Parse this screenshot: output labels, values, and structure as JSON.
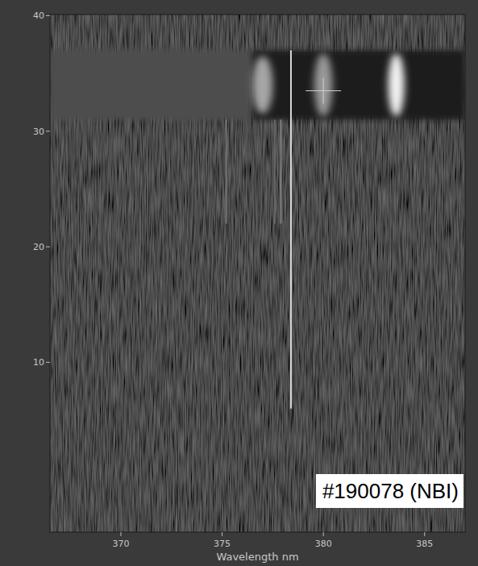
{
  "chart_data": {
    "type": "spectrogram",
    "xlabel": "Wavelength nm",
    "annotation": "#190078 (NBI)",
    "xlim": [
      366.5,
      387.0
    ],
    "ylim": [
      -4.7,
      40.1
    ],
    "xticks": [
      370,
      375,
      380,
      385
    ],
    "yticks": [
      10,
      20,
      30,
      40
    ],
    "bands": [
      {
        "x": [
          366.5,
          376.5
        ],
        "y": [
          31,
          37
        ],
        "intensity": 0.3
      },
      {
        "x": [
          376.5,
          387.0
        ],
        "y": [
          31,
          37
        ],
        "intensity": 0.12
      }
    ],
    "spots": [
      {
        "x": 377.0,
        "y": 34,
        "width": 1.0,
        "height": 5,
        "intensity": 0.65
      },
      {
        "x": 380.0,
        "y": 34,
        "width": 0.9,
        "height": 5.5,
        "intensity": 0.6
      },
      {
        "x": 383.6,
        "y": 34,
        "width": 0.8,
        "height": 5.5,
        "intensity": 0.95
      }
    ],
    "lines": [
      {
        "x": 375.2,
        "y": [
          22,
          31
        ],
        "intensity": 0.45
      },
      {
        "x": 377.6,
        "y": [
          22,
          31
        ],
        "intensity": 0.4
      },
      {
        "x": 377.9,
        "y": [
          22,
          31
        ],
        "intensity": 0.5
      },
      {
        "x": 378.4,
        "y": [
          6,
          37
        ],
        "intensity": 0.85
      }
    ],
    "cursor": {
      "x": 380.0,
      "y": 33.5
    }
  }
}
